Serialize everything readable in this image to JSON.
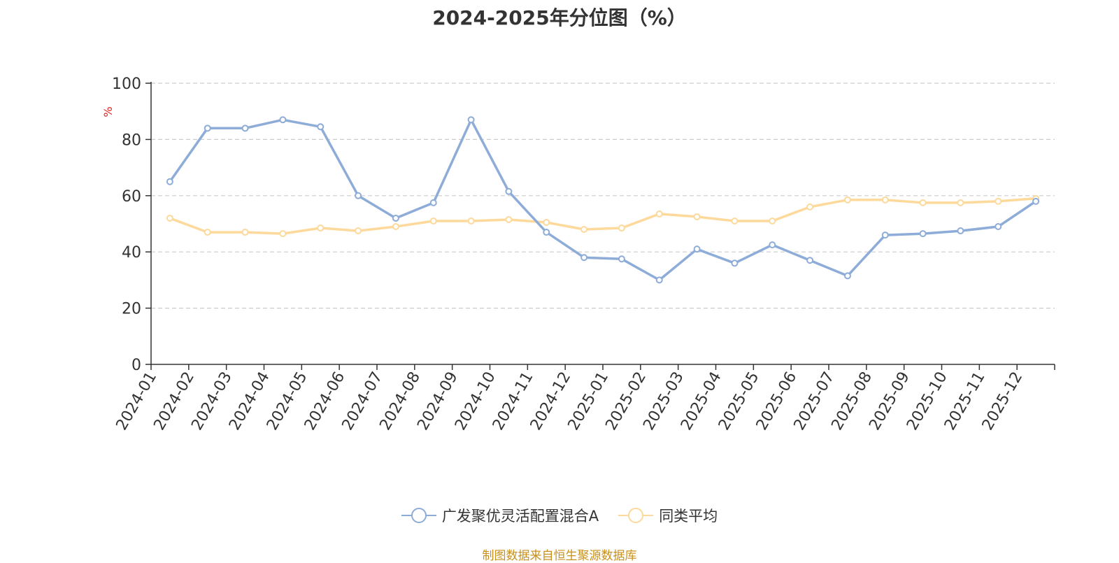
{
  "colors": {
    "series_a": "#8eacd8",
    "series_b": "#fdd99b",
    "axis": "#333333",
    "grid": "#cccccc",
    "unit": "#e02020",
    "source": "#c8901a"
  },
  "chart_data": {
    "type": "line",
    "title": "2024-2025年分位图（%）",
    "ylabel": "%",
    "xlabel": "",
    "ylim": [
      0,
      100
    ],
    "yticks": [
      0,
      20,
      40,
      60,
      80,
      100
    ],
    "grid": true,
    "legend_position": "bottom",
    "categories": [
      "2024-01",
      "2024-02",
      "2024-03",
      "2024-04",
      "2024-05",
      "2024-06",
      "2024-07",
      "2024-08",
      "2024-09",
      "2024-10",
      "2024-11",
      "2024-12",
      "2025-01",
      "2025-02",
      "2025-03",
      "2025-04",
      "2025-05",
      "2025-06",
      "2025-07",
      "2025-08",
      "2025-09",
      "2025-10",
      "2025-11",
      "2025-12"
    ],
    "series": [
      {
        "name": "广发聚优灵活配置混合A",
        "color": "#8eacd8",
        "values": [
          65,
          84,
          84,
          87,
          84.5,
          60,
          52,
          57.5,
          87,
          61.5,
          47,
          38,
          37.5,
          30,
          41,
          36,
          42.5,
          37,
          31.5,
          46,
          46.5,
          47.5,
          49,
          58
        ]
      },
      {
        "name": "同类平均",
        "color": "#fdd99b",
        "values": [
          52,
          47,
          47,
          46.5,
          48.5,
          47.5,
          49,
          51,
          51,
          51.5,
          50.5,
          48,
          48.5,
          53.5,
          52.5,
          51,
          51,
          56,
          58.5,
          58.5,
          57.5,
          57.5,
          58,
          59
        ]
      }
    ]
  },
  "source_note": "制图数据来自恒生聚源数据库"
}
